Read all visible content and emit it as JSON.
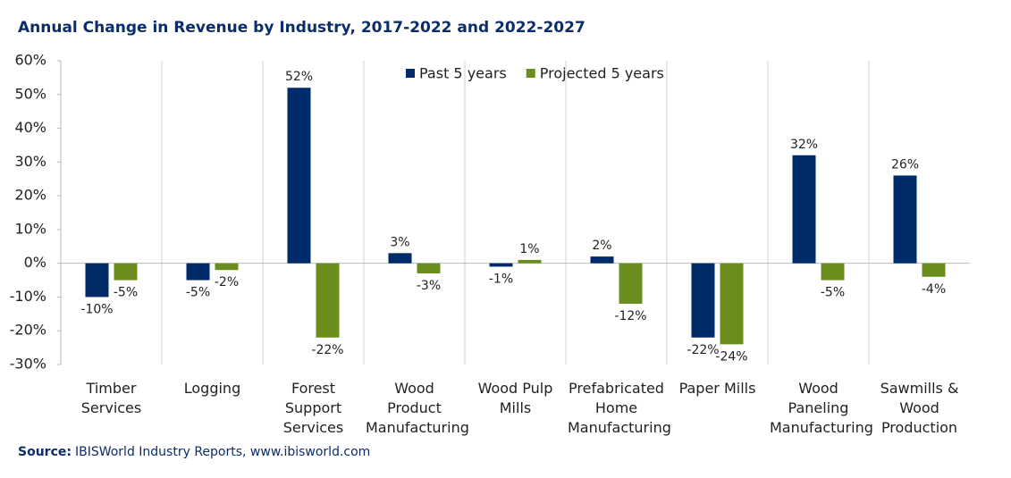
{
  "chart_data": {
    "type": "bar",
    "title": "Annual Change in Revenue by Industry, 2017-2022 and 2022-2027",
    "categories": [
      "Timber Services",
      "Logging",
      "Forest Support Services",
      "Wood Product Manufacturing",
      "Wood Pulp Mills",
      "Prefabricated Home Manufacturing",
      "Paper Mills",
      "Wood Paneling Manufacturing",
      "Sawmills & Wood Production"
    ],
    "series": [
      {
        "name": "Past 5 years",
        "color": "#002b6b",
        "values": [
          -10,
          -5,
          52,
          3,
          -1,
          2,
          -22,
          32,
          26
        ],
        "value_labels": [
          "-10%",
          "-5%",
          "52%",
          "3%",
          "-1%",
          "2%",
          "-22%",
          "32%",
          "26%"
        ]
      },
      {
        "name": "Projected 5 years",
        "color": "#6a8d1e",
        "values": [
          -5,
          -2,
          -22,
          -3,
          1,
          -12,
          -24,
          -5,
          -4
        ],
        "value_labels": [
          "-5%",
          "-2%",
          "-22%",
          "-3%",
          "1%",
          "-12%",
          "-24%",
          "-5%",
          "-4%"
        ]
      }
    ],
    "ylim": [
      -30,
      60
    ],
    "yticks": [
      {
        "value": -30,
        "label": "-30%"
      },
      {
        "value": -20,
        "label": "-20%"
      },
      {
        "value": -10,
        "label": "-10%"
      },
      {
        "value": 0,
        "label": "0%"
      },
      {
        "value": 10,
        "label": "10%"
      },
      {
        "value": 20,
        "label": "20%"
      },
      {
        "value": 30,
        "label": "30%"
      },
      {
        "value": 40,
        "label": "40%"
      },
      {
        "value": 50,
        "label": "50%"
      },
      {
        "value": 60,
        "label": "60%"
      }
    ],
    "legend": "top-center",
    "source_label": "Source:",
    "source": "IBISWorld Industry Reports, www.ibisworld.com"
  }
}
